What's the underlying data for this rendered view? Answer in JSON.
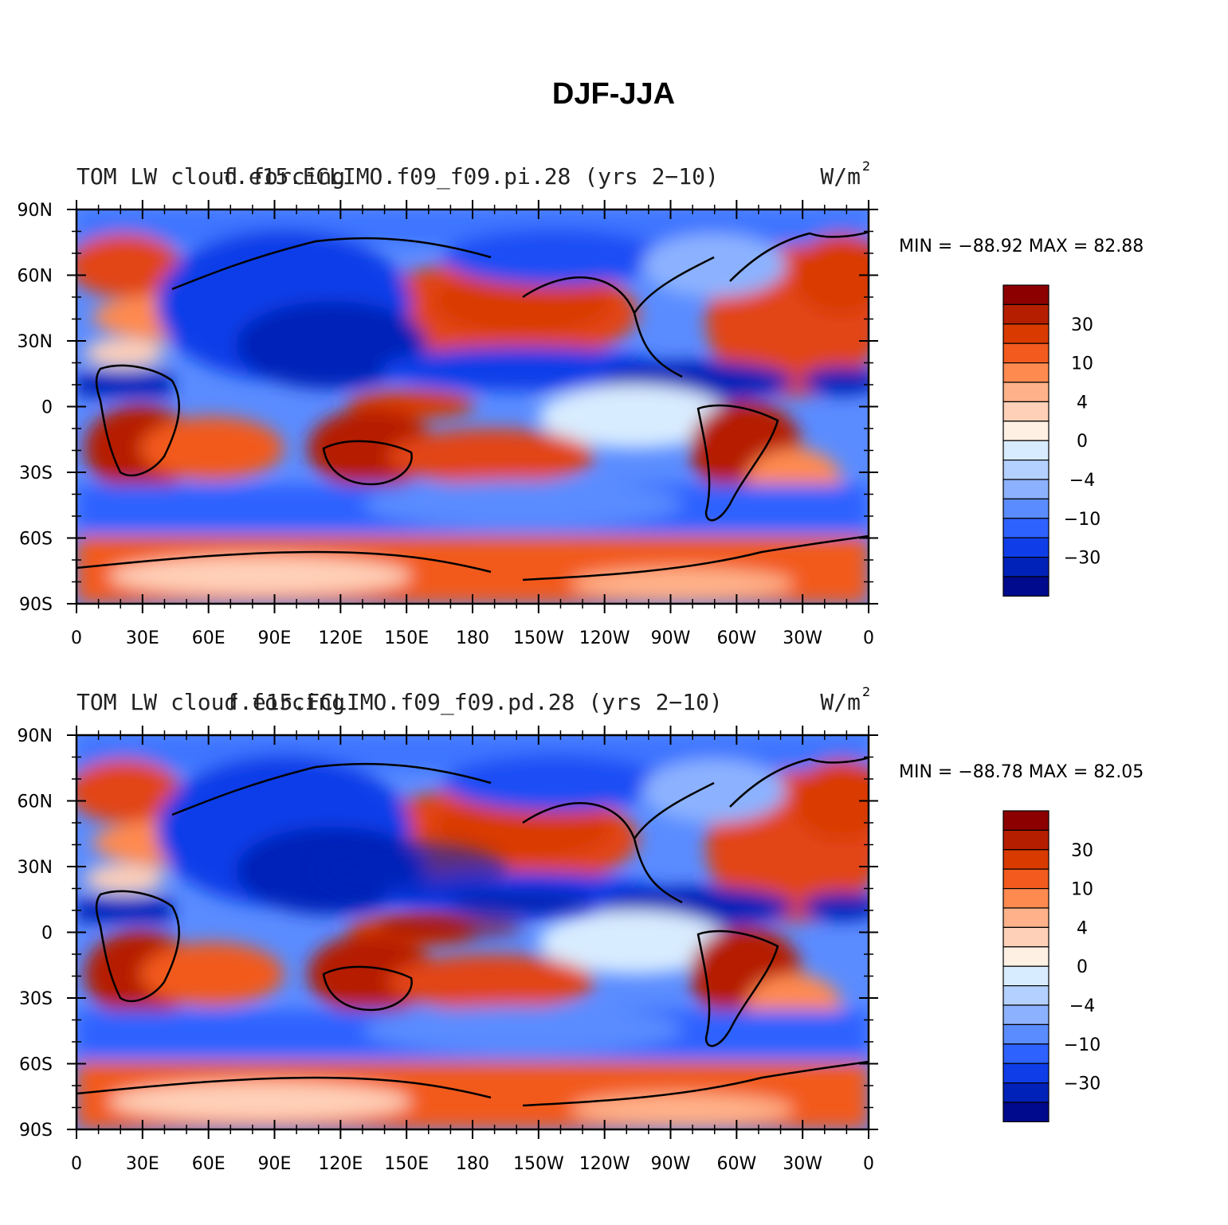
{
  "figure_title": "DJF-JJA",
  "panels": [
    {
      "left_text": "TOM LW cloud forcing",
      "center_text": "f.e15.FCLIMO.f09_f09.pi.28 (yrs 2−10)",
      "units": "W/m",
      "units_sup": "2",
      "min_max": "MIN = −88.92  MAX =   82.88"
    },
    {
      "left_text": "TOM LW cloud forcing",
      "center_text": "f.e15.FCLIMO.f09_f09.pd.28 (yrs 2−10)",
      "units": "W/m",
      "units_sup": "2",
      "min_max": "MIN = −88.78  MAX =   82.05"
    }
  ],
  "lat_labels": [
    "90N",
    "60N",
    "30N",
    "0",
    "30S",
    "60S",
    "90S"
  ],
  "lon_labels": [
    "0",
    "30E",
    "60E",
    "90E",
    "120E",
    "150E",
    "180",
    "150W",
    "120W",
    "90W",
    "60W",
    "30W",
    "0"
  ],
  "colorbar": {
    "colors": [
      "#8c0000",
      "#b51f00",
      "#d93a00",
      "#f25a1e",
      "#ff8a50",
      "#ffb28a",
      "#ffd0b8",
      "#fff0e4",
      "#d8ecff",
      "#b4d0ff",
      "#8cb2ff",
      "#5a8cff",
      "#2e62ff",
      "#0f3ee8",
      "#0022b8",
      "#000a8c"
    ],
    "labels": [
      "30",
      "10",
      "4",
      "0",
      "−4",
      "−10",
      "−30"
    ]
  }
}
